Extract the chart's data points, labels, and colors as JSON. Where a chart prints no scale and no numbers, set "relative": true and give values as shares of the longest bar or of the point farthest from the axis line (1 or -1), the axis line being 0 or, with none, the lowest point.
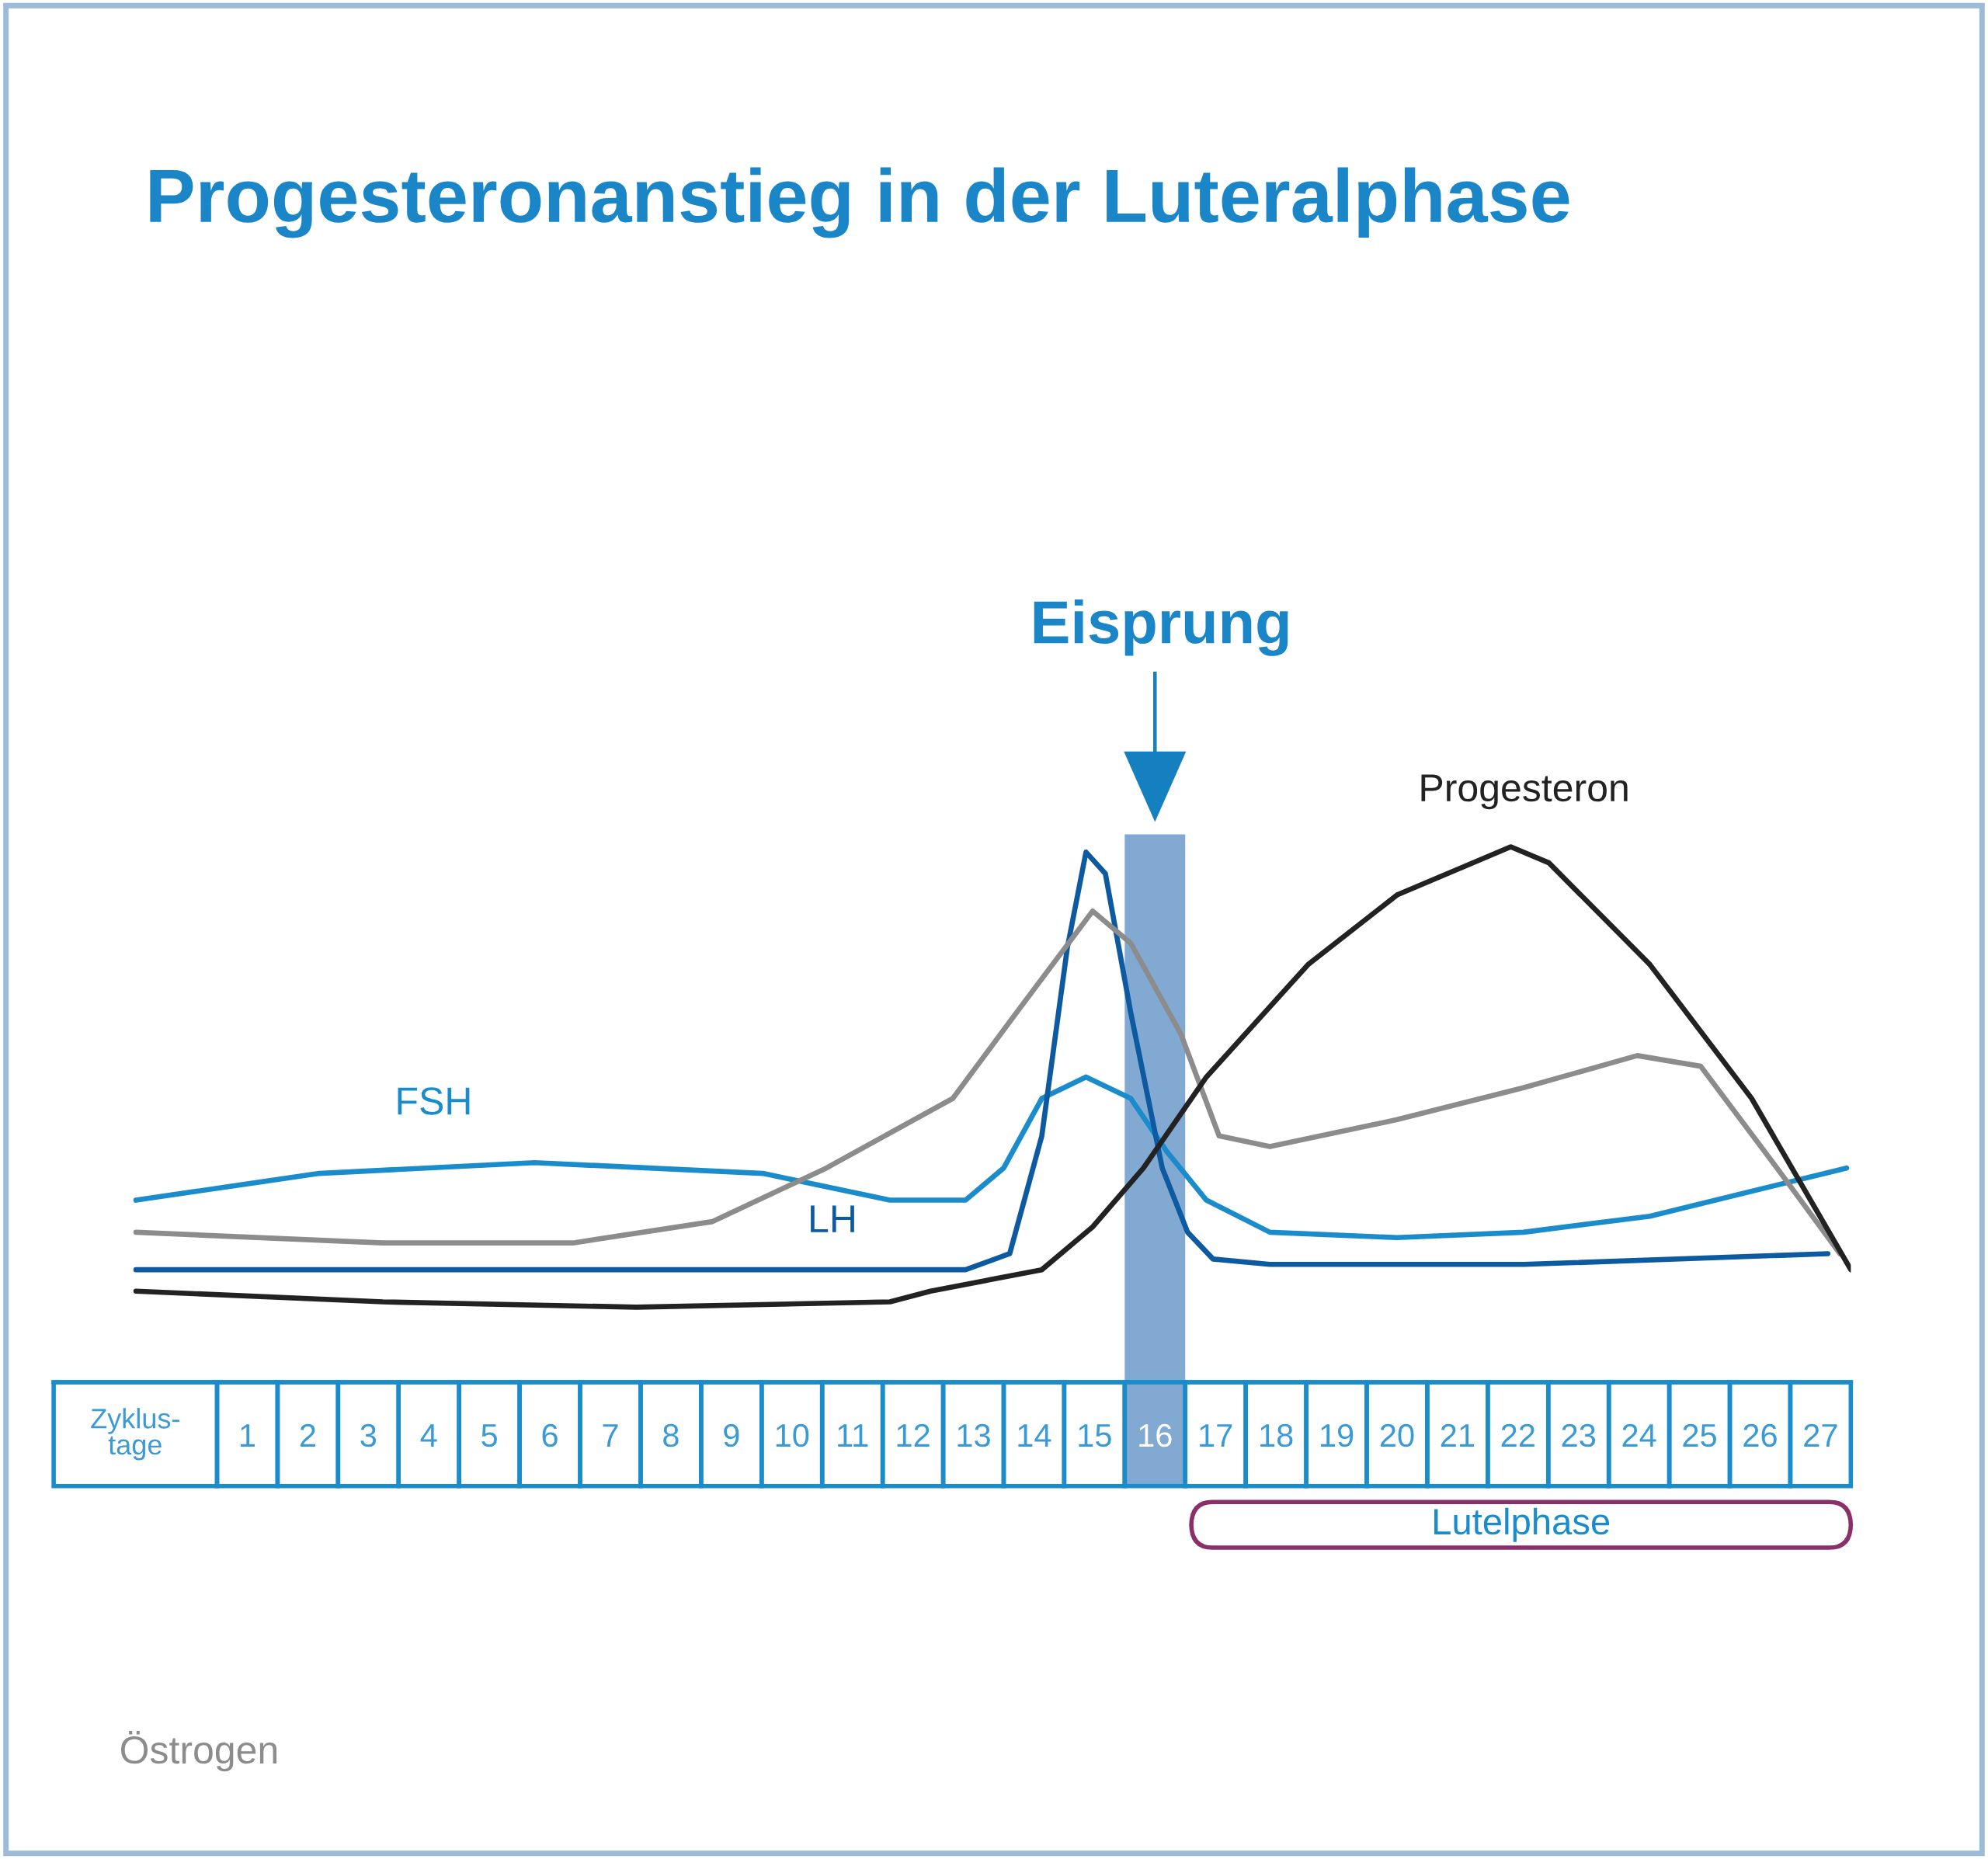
{
  "chart_data": {
    "type": "line",
    "title": "Progesteronanstieg in der Luteralphase",
    "xlabel": "Zyklus-\ntage",
    "relative": true,
    "grid": false,
    "marker": "none",
    "line_style": "solid",
    "tick_labels": "x",
    "xlim": [
      -2.2,
      27.5
    ],
    "xticks": [
      1,
      2,
      3,
      4,
      5,
      6,
      7,
      8,
      9,
      10,
      11,
      12,
      13,
      14,
      15,
      16,
      17,
      18,
      19,
      20,
      21,
      22,
      23,
      24,
      25,
      26,
      27
    ],
    "series": [
      {
        "name": "FSH",
        "color": "#1a8ccc",
        "x": [
          -0.84,
          2.19,
          5.75,
          9.52,
          11.62,
          12.87,
          13.5,
          14.13,
          14.86,
          15.6,
          16.2,
          16.85,
          17.9,
          20.0,
          22.09,
          24.18,
          27.43
        ],
        "values": [
          0.34,
          0.39,
          0.41,
          0.39,
          0.34,
          0.34,
          0.4,
          0.53,
          0.57,
          0.53,
          0.43,
          0.34,
          0.28,
          0.27,
          0.28,
          0.31,
          0.4
        ]
      },
      {
        "name": "LH",
        "color": "#0d5aa0",
        "x": [
          -0.84,
          5.34,
          11.62,
          12.87,
          13.6,
          14.13,
          14.55,
          14.86,
          15.18,
          15.6,
          16.12,
          16.54,
          16.96,
          17.9,
          22.09,
          27.12
        ],
        "values": [
          0.21,
          0.21,
          0.21,
          0.21,
          0.24,
          0.46,
          0.81,
          0.99,
          0.95,
          0.69,
          0.4,
          0.28,
          0.23,
          0.22,
          0.22,
          0.24
        ]
      },
      {
        "name": "Östrogen",
        "color": "#8c8c8c",
        "x": [
          -0.84,
          3.24,
          6.38,
          8.69,
          10.57,
          12.66,
          13.71,
          14.97,
          15.6,
          16.43,
          17.06,
          17.9,
          19.99,
          22.09,
          23.97,
          25.02,
          26.28,
          27.32
        ],
        "values": [
          0.28,
          0.26,
          0.26,
          0.3,
          0.4,
          0.53,
          0.69,
          0.88,
          0.82,
          0.65,
          0.46,
          0.44,
          0.49,
          0.55,
          0.61,
          0.59,
          0.4,
          0.24
        ]
      },
      {
        "name": "Progesteron",
        "color": "#222222",
        "x": [
          -0.84,
          3.24,
          7.43,
          11.62,
          12.29,
          14.13,
          14.97,
          15.81,
          16.85,
          18.53,
          20.0,
          21.88,
          22.51,
          24.18,
          25.86,
          27.5
        ],
        "values": [
          0.17,
          0.15,
          0.14,
          0.15,
          0.17,
          0.21,
          0.29,
          0.4,
          0.57,
          0.78,
          0.91,
          1.0,
          0.97,
          0.78,
          0.53,
          0.21
        ]
      }
    ],
    "bands": [
      {
        "axis": "x",
        "from": 15.5,
        "to": 16.5,
        "color": "#7ba4d0"
      }
    ],
    "annotations": [
      "Eisprung",
      "Lutelphase"
    ]
  }
}
